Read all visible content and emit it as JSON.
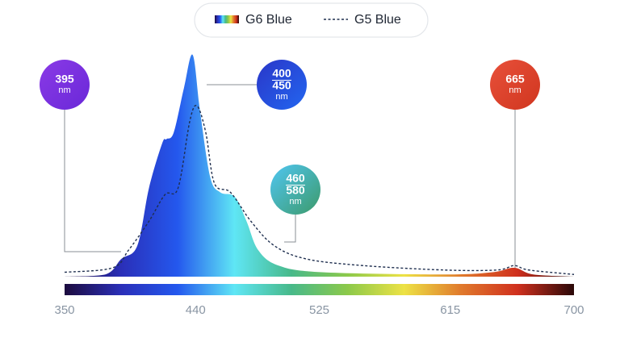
{
  "chart_data": {
    "type": "spectrum",
    "xlim": [
      350,
      700
    ],
    "xticks": [
      350,
      440,
      525,
      615,
      700
    ],
    "ylim": [
      0,
      100
    ],
    "spectrum_colors": [
      "#1c0b3e",
      "#2a2fb8",
      "#2458ee",
      "#5fe6f5",
      "#47b98a",
      "#8cc94a",
      "#ede245",
      "#e07a2c",
      "#d0301e",
      "#2a0808"
    ],
    "series": [
      {
        "name": "G6 Blue",
        "style": "gradient-area",
        "x": [
          350,
          378,
          389,
          400,
          408,
          417,
          420,
          425,
          432,
          438,
          443,
          450,
          457,
          467,
          475,
          483,
          497,
          527,
          611,
          644,
          659,
          672,
          700
        ],
        "values": [
          0,
          1,
          8,
          14,
          40,
          60,
          62,
          65,
          85,
          100,
          75,
          45,
          38,
          36,
          25,
          12,
          5,
          2,
          1,
          2,
          4,
          1,
          0
        ]
      },
      {
        "name": "G5 Blue",
        "style": "dashed-line",
        "color": "#1f2f4f",
        "x": [
          350,
          383,
          394,
          408,
          419,
          428,
          436,
          441,
          447,
          453,
          464,
          478,
          494,
          516,
          555,
          611,
          647,
          659,
          669,
          700
        ],
        "values": [
          2,
          4,
          12,
          25,
          37,
          40,
          70,
          77,
          65,
          42,
          38,
          25,
          14,
          8,
          5,
          3,
          3,
          5,
          3,
          1
        ]
      }
    ],
    "annotations": [
      {
        "lines": [
          "395"
        ],
        "unit": "nm",
        "colors": [
          "#8a3ae6",
          "#6a28d8"
        ]
      },
      {
        "lines": [
          "400",
          "450"
        ],
        "unit": "nm",
        "colors": [
          "#2a36c8",
          "#2266f0"
        ]
      },
      {
        "lines": [
          "460",
          "580"
        ],
        "unit": "nm",
        "colors": [
          "#4fc6f2",
          "#3d9a6a"
        ]
      },
      {
        "lines": [
          "665"
        ],
        "unit": "nm",
        "colors": [
          "#e8503a",
          "#d0361f"
        ]
      }
    ]
  }
}
